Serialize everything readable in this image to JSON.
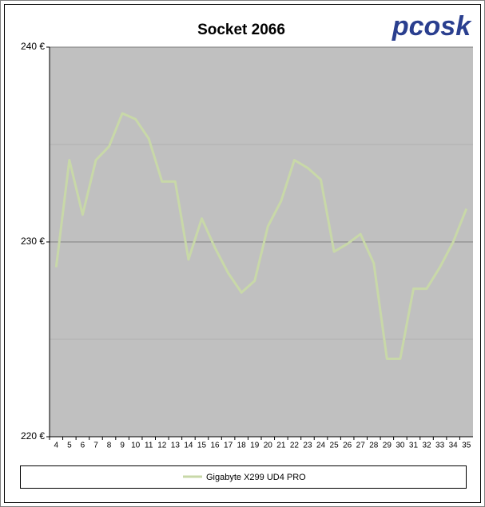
{
  "chart_data": {
    "type": "line",
    "title": "Socket 2066",
    "logo": "pcosk",
    "categories": [
      4,
      5,
      6,
      7,
      8,
      9,
      10,
      11,
      12,
      13,
      14,
      15,
      16,
      17,
      18,
      19,
      20,
      21,
      22,
      23,
      24,
      25,
      26,
      27,
      28,
      29,
      30,
      31,
      32,
      33,
      34,
      35
    ],
    "series": [
      {
        "name": "Gigabyte X299 UD4 PRO",
        "color": "#c8d8a8",
        "values": [
          228.7,
          234.2,
          231.4,
          234.2,
          234.9,
          236.6,
          236.3,
          235.3,
          233.1,
          233.1,
          229.1,
          231.2,
          229.7,
          228.4,
          227.4,
          228.0,
          230.8,
          232.1,
          234.2,
          233.8,
          233.2,
          229.5,
          229.9,
          230.4,
          228.9,
          224.0,
          224.0,
          227.6,
          227.6,
          228.7,
          230.0,
          231.7
        ]
      }
    ],
    "ylim": [
      220,
      240
    ],
    "yticks": [
      {
        "value": 220,
        "label": "220 €"
      },
      {
        "value": 230,
        "label": "230 €"
      },
      {
        "value": 240,
        "label": "240 €"
      }
    ],
    "minor_yticks": [
      225,
      235
    ],
    "grid": true
  }
}
